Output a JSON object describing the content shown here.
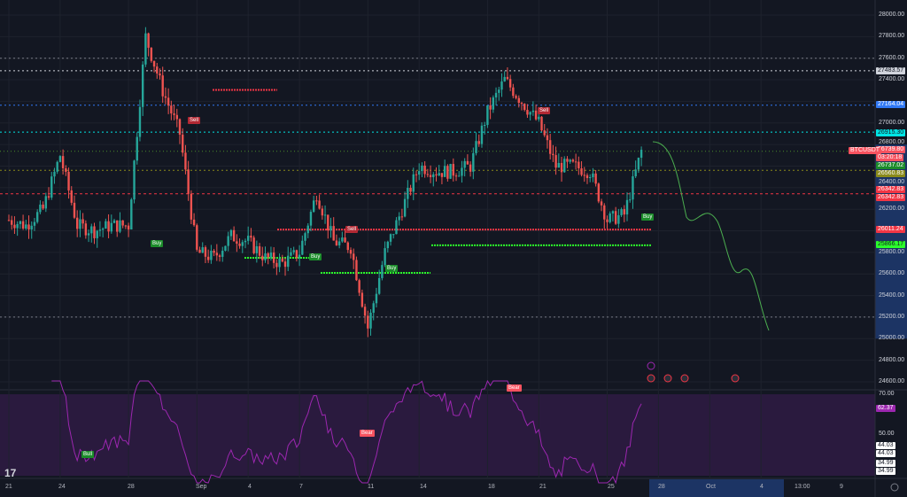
{
  "symbol": "BTCUSDT",
  "last_price": "26739.80",
  "countdown": "03:20:18",
  "price_axis": {
    "ticks": [
      "28000.00",
      "27800.00",
      "27600.00",
      "27400.00",
      "27000.00",
      "26800.00",
      "26400.00",
      "26200.00",
      "25800.00",
      "25600.00",
      "25400.00",
      "25200.00",
      "25000.00",
      "24800.00",
      "24600.00"
    ]
  },
  "price_labels": [
    {
      "text": "27483.57",
      "price": 27483.57,
      "bg": "#d1d4dc",
      "fg": "#131722"
    },
    {
      "text": "27164.04",
      "price": 27164.04,
      "bg": "#3179f5",
      "fg": "#ffffff"
    },
    {
      "text": "26915.30",
      "price": 26915.3,
      "bg": "#00e5e5",
      "fg": "#131722"
    },
    {
      "text": "26737.02",
      "price": 26737.02,
      "bg": "#1b8c2a",
      "fg": "#ffffff"
    },
    {
      "text": "26560.83",
      "price": 26560.83,
      "bg": "#8a8a1a",
      "fg": "#ffffff"
    },
    {
      "text": "26342.83",
      "price": 26342.83,
      "bg": "#f23645",
      "fg": "#ffffff"
    },
    {
      "text": "26342.83",
      "price": 26200,
      "bg": "#f23645",
      "fg": "#ffffff"
    },
    {
      "text": "26011.24",
      "price": 26011.24,
      "bg": "#f23645",
      "fg": "#ffffff"
    },
    {
      "text": "25866.17",
      "price": 25866.17,
      "bg": "#2bff2b",
      "fg": "#131722"
    }
  ],
  "rsi_axis": {
    "ticks": [
      "70.00",
      "50.00"
    ],
    "value": "62.37",
    "labels": [
      "44.03",
      "44.03",
      "34.99",
      "34.99"
    ]
  },
  "time_axis": [
    "21",
    "24",
    "28",
    "Sep",
    "4",
    "7",
    "11",
    "14",
    "18",
    "21",
    "25",
    "28",
    "Oct",
    "4",
    "13:00",
    "9"
  ],
  "signals": [
    {
      "text": "Buy",
      "type": "buy"
    },
    {
      "text": "Sell",
      "type": "sell"
    },
    {
      "text": "Sell",
      "type": "sell"
    },
    {
      "text": "Buy",
      "type": "buy"
    },
    {
      "text": "Buy",
      "type": "buy"
    },
    {
      "text": "Sell",
      "type": "sell"
    },
    {
      "text": "Buy",
      "type": "buy"
    }
  ],
  "rsi_signals": [
    {
      "text": "Bull",
      "type": "buy"
    },
    {
      "text": "Bear",
      "type": "sell"
    },
    {
      "text": "Bear",
      "type": "sell"
    }
  ],
  "colors": {
    "up": "#26a69a",
    "down": "#ef5350",
    "rsi": "#9c27b0",
    "forecast": "#4caf50"
  },
  "chart_data": {
    "type": "candlestick",
    "x_start": "Aug 21",
    "approx_close_by_day": [
      26100,
      26050,
      26200,
      26700,
      26050,
      26000,
      26050,
      26050,
      27800,
      27300,
      26900,
      25800,
      25750,
      25950,
      25900,
      25750,
      25700,
      25800,
      26350,
      25900,
      25850,
      25100,
      25800,
      26200,
      26600,
      26550,
      26550,
      26600,
      27100,
      27400,
      27200,
      27000,
      26600,
      26600,
      26550,
      26100,
      26150,
      26740
    ],
    "ylim": [
      24600,
      28000
    ],
    "rsi_ylim": [
      30,
      70
    ]
  }
}
